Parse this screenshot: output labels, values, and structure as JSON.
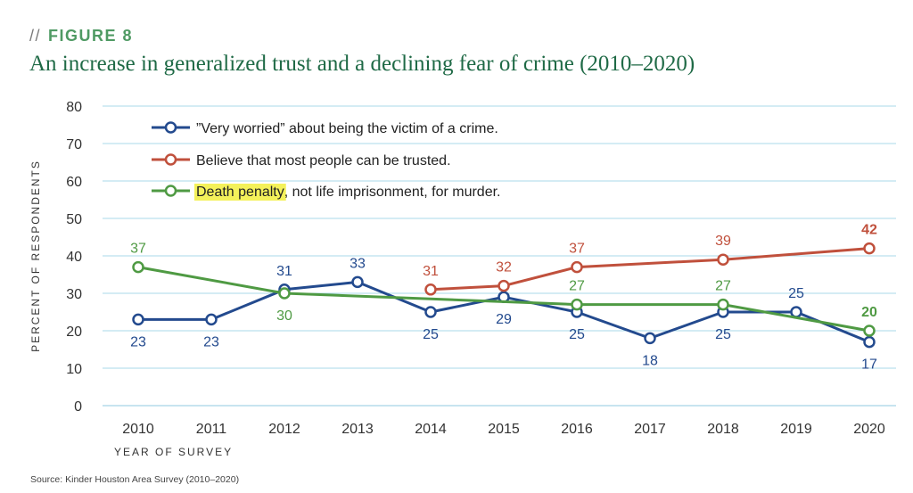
{
  "figure": {
    "tag_slashes": "//",
    "tag": "FIGURE 8",
    "title": "An increase in generalized trust and a declining fear of crime (2010–2020)",
    "source": "Source: Kinder Houston Area Survey (2010–2020)"
  },
  "chart_data": {
    "type": "line",
    "categories": [
      "2010",
      "2011",
      "2012",
      "2013",
      "2014",
      "2015",
      "2016",
      "2017",
      "2018",
      "2019",
      "2020"
    ],
    "xlabel": "YEAR OF SURVEY",
    "ylabel": "PERCENT OF RESPONDENTS",
    "ylim": [
      0,
      80
    ],
    "yticks": [
      0,
      10,
      20,
      30,
      40,
      50,
      60,
      70,
      80
    ],
    "grid": true,
    "legend_position": "top-left",
    "series": [
      {
        "name": "”Very worried” about being the victim of a crime.",
        "color": "#234a8e",
        "values": [
          23,
          23,
          31,
          33,
          25,
          29,
          25,
          18,
          25,
          25,
          17
        ],
        "labels": [
          "23",
          "23",
          "31",
          "33",
          "25",
          "29",
          "25",
          "18",
          "25",
          "25",
          "17"
        ],
        "label_pos": [
          "below",
          "below",
          "above",
          "above",
          "below",
          "below",
          "below",
          "below",
          "below",
          "above",
          "below"
        ],
        "bold_last": false
      },
      {
        "name": "Believe that most people can be trusted.",
        "color": "#c0503c",
        "values": [
          null,
          null,
          null,
          null,
          31,
          32,
          37,
          null,
          39,
          null,
          42
        ],
        "labels": [
          null,
          null,
          null,
          null,
          "31",
          "32",
          "37",
          null,
          "39",
          null,
          "42"
        ],
        "label_pos": [
          null,
          null,
          null,
          null,
          "above",
          "above",
          "above",
          null,
          "above",
          null,
          "above"
        ],
        "bold_last": true
      },
      {
        "name": "Death penalty, not life imprisonment, for murder.",
        "highlight": "Death penalty",
        "rest": ", not life imprisonment, for murder.",
        "color": "#4f9a43",
        "values": [
          37,
          null,
          30,
          null,
          null,
          null,
          27,
          null,
          27,
          null,
          20
        ],
        "labels": [
          "37",
          null,
          "30",
          null,
          null,
          null,
          "27",
          null,
          "27",
          null,
          "20"
        ],
        "label_pos": [
          "above",
          null,
          "below",
          null,
          null,
          null,
          "above",
          null,
          "above",
          null,
          "above"
        ],
        "bold_last": true
      }
    ]
  }
}
